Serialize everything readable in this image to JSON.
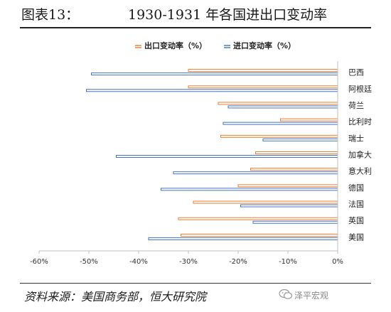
{
  "figure": {
    "label": "图表13：",
    "title": "1930-1931 年各国进出口变动率"
  },
  "source": "资料来源：美国商务部，恒大研究院",
  "watermark": "泽平宏观",
  "colors": {
    "export": "#ED7D31",
    "import": "#4472C4"
  },
  "chart_data": {
    "type": "bar",
    "orientation": "horizontal",
    "categories": [
      "巴西",
      "阿根廷",
      "荷兰",
      "比利时",
      "瑞士",
      "加拿大",
      "意大利",
      "德国",
      "法国",
      "英国",
      "美国"
    ],
    "series": [
      {
        "name": "出口变动率（%）",
        "values": [
          -30,
          -30,
          -24,
          -11.5,
          -23.5,
          -16.5,
          -17.5,
          -20,
          -29,
          -32,
          -31.5
        ]
      },
      {
        "name": "进口变动率（%）",
        "values": [
          -49.5,
          -50.5,
          -22,
          -23,
          -15,
          -44.5,
          -33,
          -35.5,
          -19.5,
          -17,
          -38
        ]
      }
    ],
    "xlim": [
      -60,
      0
    ],
    "xticks": [
      -60,
      -50,
      -40,
      -30,
      -20,
      -10,
      0
    ],
    "xtick_labels": [
      "-60%",
      "-50%",
      "-40%",
      "-30%",
      "-20%",
      "-10%",
      "0%"
    ],
    "grid": false,
    "legend_position": "top-left"
  }
}
